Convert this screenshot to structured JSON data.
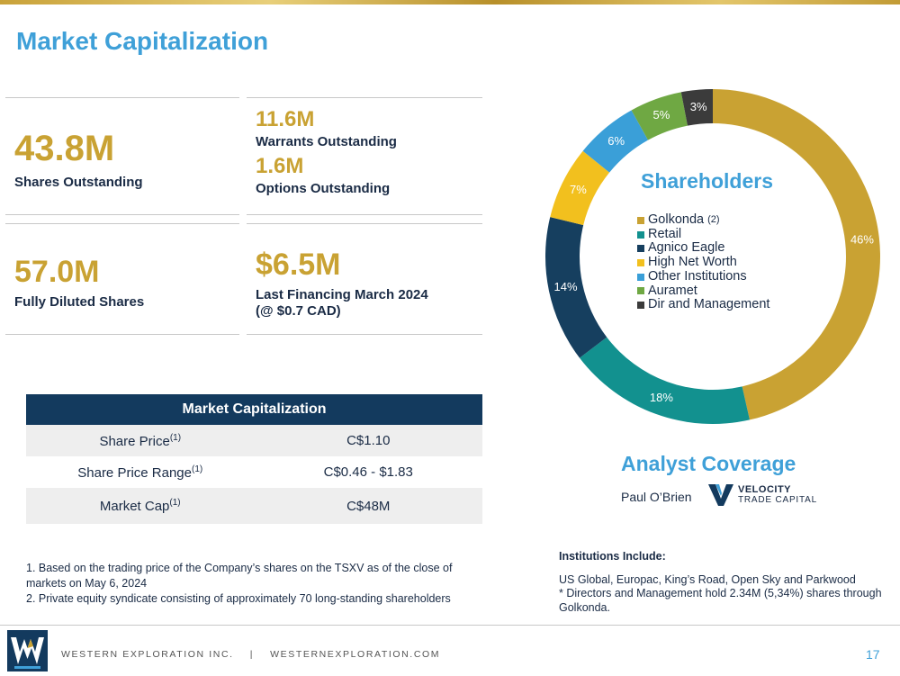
{
  "title": "Market Capitalization",
  "stats": {
    "shares_value": "43.8M",
    "shares_label": "Shares Outstanding",
    "warrants_value": "11.6M",
    "warrants_label": "Warrants Outstanding",
    "options_value": "1.6M",
    "options_label": "Options Outstanding",
    "diluted_value": "57.0M",
    "diluted_label": "Fully Diluted Shares",
    "financing_value": "$6.5M",
    "financing_label_1": "Last Financing March 2024",
    "financing_label_2": "(@ $0.7 CAD)"
  },
  "market_table": {
    "header": "Market Capitalization",
    "rows": [
      {
        "label": "Share Price",
        "sup": "(1)",
        "value": "C$1.10"
      },
      {
        "label": "Share Price Range",
        "sup": "(1)",
        "value": "C$0.46 - $1.83"
      },
      {
        "label": "Market Cap",
        "sup": "(1)",
        "value": "C$48M"
      }
    ]
  },
  "footnotes": {
    "note1": "1. Based on the trading price of the Company’s shares on the TSXV as of the close of markets on May 6, 2024",
    "note2": "2. Private equity syndicate consisting of approximately 70 long-standing shareholders"
  },
  "chart_data": {
    "type": "pie",
    "title": "Shareholders",
    "categories": [
      "Golkonda",
      "Retail",
      "Agnico Eagle",
      "High Net Worth",
      "Other Institutions",
      "Auramet",
      "Dir and Management"
    ],
    "values": [
      46,
      18,
      14,
      7,
      6,
      5,
      3
    ],
    "labels": [
      "46%",
      "18%",
      "14%",
      "7%",
      "6%",
      "5%",
      "3%"
    ],
    "colors": [
      "#c9a233",
      "#12918f",
      "#163f5f",
      "#f2c01e",
      "#3a9fd8",
      "#6fa843",
      "#3b3b3b"
    ],
    "legend_notes": [
      "(2)",
      "",
      "",
      "",
      "",
      "",
      ""
    ],
    "legend": "inside-center",
    "donut": true
  },
  "analyst": {
    "title": "Analyst Coverage",
    "name": "Paul O’Brien",
    "logo_line1": "VELOCITY",
    "logo_line2": "TRADE CAPITAL"
  },
  "institutions": {
    "heading": "Institutions Include:",
    "line1": "US Global, Europac, King’s Road, Open Sky and Parkwood",
    "line2": "* Directors and Management hold 2.34M (5,34%) shares through Golkonda."
  },
  "footer": {
    "company": "WESTERN EXPLORATION INC.    |    WESTERNEXPLORATION.COM",
    "page": "17"
  }
}
